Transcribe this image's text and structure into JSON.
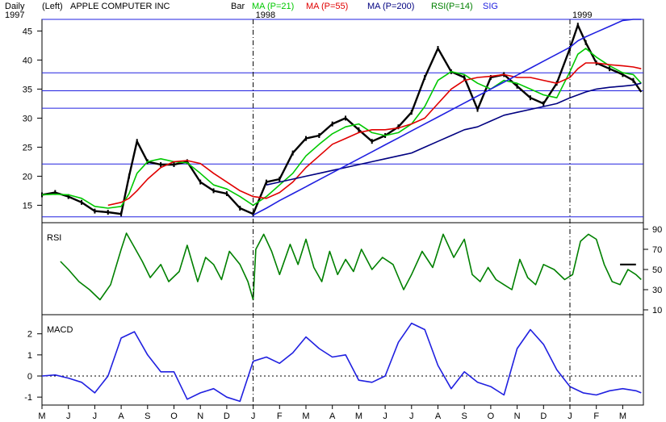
{
  "header": {
    "period": "Daily",
    "axis_side": "(Left)",
    "title": "APPLE COMPUTER INC",
    "bar_label": "Bar",
    "legend": [
      {
        "label": "MA (P=21)",
        "color": "#00c800"
      },
      {
        "label": "MA (P=55)",
        "color": "#e00000"
      },
      {
        "label": "MA (P=200)",
        "color": "#000080"
      },
      {
        "label": "RSI(P=14)",
        "color": "#008000"
      },
      {
        "label": "SIG",
        "color": "#2020e0"
      }
    ]
  },
  "chart_data": [
    {
      "type": "line",
      "panel": "price",
      "ylim": [
        12,
        47
      ],
      "yticks": [
        15,
        20,
        25,
        30,
        35,
        40,
        45
      ],
      "hlines": [
        47,
        37.8,
        34.7,
        31.7,
        22.1,
        13
      ],
      "year_labels": [
        {
          "label": "1997",
          "month_index": 0
        },
        {
          "label": "1998",
          "month_index": 8
        },
        {
          "label": "1999",
          "month_index": 20
        }
      ],
      "month_labels": [
        "M",
        "J",
        "J",
        "A",
        "S",
        "O",
        "N",
        "D",
        "J",
        "F",
        "M",
        "A",
        "M",
        "J",
        "J",
        "A",
        "S",
        "O",
        "N",
        "D",
        "J",
        "F",
        "M"
      ],
      "x": [
        0,
        0.5,
        1,
        1.5,
        2,
        2.5,
        3,
        3.3,
        3.6,
        4,
        4.5,
        5,
        5.5,
        6,
        6.5,
        7,
        7.5,
        8,
        8.5,
        9,
        9.5,
        10,
        10.5,
        11,
        11.5,
        12,
        12.5,
        13,
        13.5,
        14,
        14.5,
        15,
        15.5,
        16,
        16.5,
        17,
        17.5,
        18,
        18.5,
        19,
        19.5,
        20,
        20.3,
        20.6,
        21,
        21.5,
        22,
        22.4,
        22.7
      ],
      "series": [
        {
          "role": "price",
          "color": "#000000",
          "values": [
            16.8,
            17.2,
            16.5,
            15.5,
            14,
            13.8,
            13.5,
            20,
            26,
            22.5,
            22,
            22,
            22.5,
            19,
            17.5,
            17,
            14.5,
            13.5,
            19,
            19.5,
            24,
            26.5,
            27,
            29,
            30,
            28,
            26,
            27,
            28.5,
            31,
            37,
            42,
            38,
            37,
            31.5,
            37,
            37.5,
            35.5,
            33.5,
            32.5,
            36,
            42,
            46,
            43,
            39.5,
            38.5,
            37.5,
            36.5,
            34.5
          ]
        },
        {
          "name": "MA (P=21)",
          "color": "#00c800",
          "values": [
            16.8,
            16.9,
            16.8,
            16.2,
            14.8,
            14.5,
            14.8,
            17,
            20.5,
            22.5,
            23,
            22.5,
            22.3,
            20.5,
            18.5,
            17.8,
            16.5,
            15,
            16.5,
            18.5,
            20.5,
            23.5,
            25.5,
            27.3,
            28.5,
            29,
            27.5,
            27,
            27.5,
            29,
            32,
            36.5,
            38,
            37.5,
            36,
            35,
            36.5,
            36,
            35,
            34,
            33.5,
            38,
            41,
            42,
            40.5,
            39,
            37.8,
            37.5,
            36
          ]
        },
        {
          "name": "MA (P=55)",
          "color": "#e00000",
          "values": [
            null,
            null,
            null,
            null,
            null,
            15,
            15.5,
            16.2,
            17.5,
            19.5,
            21.5,
            22.5,
            22.7,
            22.2,
            20.5,
            19,
            17.5,
            16.5,
            16.2,
            17.2,
            19,
            21.5,
            23.5,
            25.5,
            26.5,
            27.5,
            28,
            28,
            28.3,
            29,
            30,
            32.5,
            35,
            36.5,
            37,
            37.2,
            37.5,
            37,
            37,
            36.5,
            36,
            37,
            38.5,
            39.5,
            39.5,
            39.2,
            39,
            38.8,
            38.5
          ]
        },
        {
          "name": "MA (P=200)",
          "color": "#000080",
          "values": [
            null,
            null,
            null,
            null,
            null,
            null,
            null,
            null,
            null,
            null,
            null,
            null,
            null,
            null,
            null,
            null,
            null,
            null,
            18.5,
            19,
            19.5,
            20,
            20.5,
            21,
            21.5,
            22,
            22.5,
            23,
            23.5,
            24,
            25,
            26,
            27,
            28,
            28.5,
            29.5,
            30.5,
            31,
            31.5,
            32,
            32.5,
            33.5,
            34,
            34.5,
            35,
            35.3,
            35.5,
            35.7,
            36
          ]
        },
        {
          "name": "trendline",
          "color": "#2020e0",
          "values": [
            null,
            null,
            null,
            null,
            null,
            null,
            null,
            null,
            null,
            null,
            null,
            null,
            null,
            null,
            null,
            null,
            null,
            13.3,
            14.5,
            15.8,
            17,
            18.2,
            19.4,
            20.6,
            21.8,
            23,
            24.2,
            25.4,
            26.6,
            27.8,
            29,
            30.2,
            31.4,
            32.6,
            33.8,
            35,
            36.2,
            37.4,
            38.6,
            39.8,
            41,
            42.2,
            43.3,
            44,
            44.8,
            45.8,
            46.8,
            47,
            47
          ]
        }
      ]
    },
    {
      "type": "line",
      "panel": "rsi",
      "title": "RSI",
      "ylim": [
        10,
        90
      ],
      "yticks": [
        10,
        30,
        50,
        70,
        90
      ],
      "x": [
        0.7,
        1,
        1.4,
        1.8,
        2.2,
        2.6,
        3,
        3.2,
        3.5,
        3.8,
        4.1,
        4.5,
        4.8,
        5.2,
        5.5,
        5.9,
        6.2,
        6.5,
        6.8,
        7.1,
        7.5,
        7.8,
        8,
        8.1,
        8.4,
        8.7,
        9,
        9.4,
        9.7,
        10,
        10.3,
        10.6,
        10.9,
        11.2,
        11.5,
        11.8,
        12.1,
        12.5,
        12.9,
        13.3,
        13.7,
        14,
        14.4,
        14.8,
        15.2,
        15.6,
        16,
        16.3,
        16.6,
        16.9,
        17.2,
        17.5,
        17.8,
        18.1,
        18.4,
        18.7,
        19,
        19.4,
        19.8,
        20.1,
        20.4,
        20.7,
        21,
        21.3,
        21.6,
        21.9,
        22.2,
        22.5,
        22.7
      ],
      "series": [
        {
          "name": "RSI(P=14)",
          "color": "#008000",
          "values": [
            58,
            50,
            38,
            30,
            20,
            35,
            70,
            86,
            72,
            58,
            42,
            55,
            38,
            48,
            74,
            38,
            62,
            55,
            40,
            68,
            55,
            38,
            20,
            70,
            85,
            68,
            45,
            75,
            55,
            80,
            52,
            38,
            68,
            45,
            60,
            48,
            70,
            50,
            62,
            55,
            30,
            45,
            68,
            52,
            85,
            62,
            80,
            45,
            38,
            52,
            40,
            35,
            30,
            60,
            42,
            35,
            55,
            50,
            40,
            45,
            78,
            85,
            80,
            55,
            38,
            35,
            50,
            45,
            40
          ]
        },
        {
          "name": "SIG",
          "color": "#000000",
          "values": [
            null,
            null,
            null,
            null,
            null,
            null,
            null,
            null,
            null,
            null,
            null,
            null,
            null,
            null,
            null,
            null,
            null,
            null,
            null,
            null,
            null,
            null,
            null,
            null,
            null,
            null,
            null,
            null,
            null,
            null,
            null,
            null,
            null,
            null,
            null,
            null,
            null,
            null,
            null,
            null,
            null,
            null,
            null,
            null,
            null,
            null,
            null,
            null,
            null,
            null,
            null,
            null,
            null,
            null,
            null,
            null,
            null,
            null,
            null,
            null,
            null,
            null,
            null,
            null,
            null,
            55,
            55,
            55,
            null
          ]
        }
      ]
    },
    {
      "type": "line",
      "panel": "macd",
      "title": "MACD",
      "ylim": [
        -1.3,
        2.6
      ],
      "yticks": [
        -1,
        0,
        1,
        2
      ],
      "zero_line": true,
      "x": [
        0,
        0.5,
        1,
        1.5,
        2,
        2.5,
        3,
        3.5,
        4,
        4.5,
        5,
        5.5,
        6,
        6.5,
        7,
        7.5,
        8,
        8.5,
        9,
        9.5,
        10,
        10.5,
        11,
        11.5,
        12,
        12.5,
        13,
        13.5,
        14,
        14.5,
        15,
        15.5,
        16,
        16.5,
        17,
        17.5,
        18,
        18.5,
        19,
        19.5,
        20,
        20.5,
        21,
        21.5,
        22,
        22.5,
        22.7
      ],
      "series": [
        {
          "name": "MACD",
          "color": "#2020e0",
          "values": [
            0,
            0.05,
            -0.1,
            -0.3,
            -0.8,
            0,
            1.8,
            2.1,
            1,
            0.2,
            0.2,
            -1.1,
            -0.8,
            -0.6,
            -1,
            -1.2,
            0.7,
            0.9,
            0.6,
            1.1,
            1.85,
            1.3,
            0.9,
            1,
            -0.2,
            -0.3,
            0,
            1.6,
            2.5,
            2.2,
            0.5,
            -0.6,
            0.2,
            -0.3,
            -0.5,
            -0.9,
            1.3,
            2.2,
            1.5,
            0.3,
            -0.5,
            -0.8,
            -0.9,
            -0.7,
            -0.6,
            -0.7,
            -0.8
          ]
        }
      ]
    }
  ]
}
